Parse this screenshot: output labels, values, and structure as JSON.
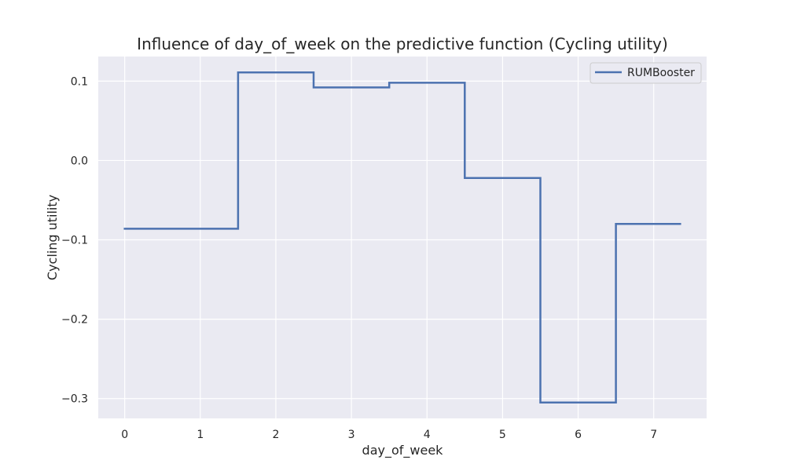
{
  "chart_data": {
    "type": "line",
    "title": "Influence of day_of_week on the predictive function (Cycling utility)",
    "xlabel": "day_of_week",
    "ylabel": "Cycling utility",
    "xlim": [
      -0.35,
      7.7
    ],
    "ylim": [
      -0.325,
      0.131
    ],
    "xticks": [
      0,
      1,
      2,
      3,
      4,
      5,
      6,
      7
    ],
    "xtick_labels": [
      "0",
      "1",
      "2",
      "3",
      "4",
      "5",
      "6",
      "7"
    ],
    "yticks": [
      0.1,
      0.0,
      -0.1,
      -0.2,
      -0.3
    ],
    "ytick_labels": [
      "0.1",
      "0.0",
      "−0.1",
      "−0.2",
      "−0.3"
    ],
    "grid": true,
    "legend_position": "top-right",
    "background_color": "#eaeaf2",
    "grid_color": "#ffffff",
    "series": [
      {
        "name": "RUMBooster",
        "color": "#4c72b0",
        "step": true,
        "x": [
          0,
          1.5,
          1.5,
          2.5,
          2.5,
          3.5,
          3.5,
          4.5,
          4.5,
          5.5,
          5.5,
          6.5,
          6.5,
          7.35
        ],
        "y": [
          -0.086,
          -0.086,
          0.111,
          0.111,
          0.092,
          0.092,
          0.098,
          0.098,
          -0.022,
          -0.022,
          -0.305,
          -0.305,
          -0.08,
          -0.08
        ]
      }
    ]
  }
}
